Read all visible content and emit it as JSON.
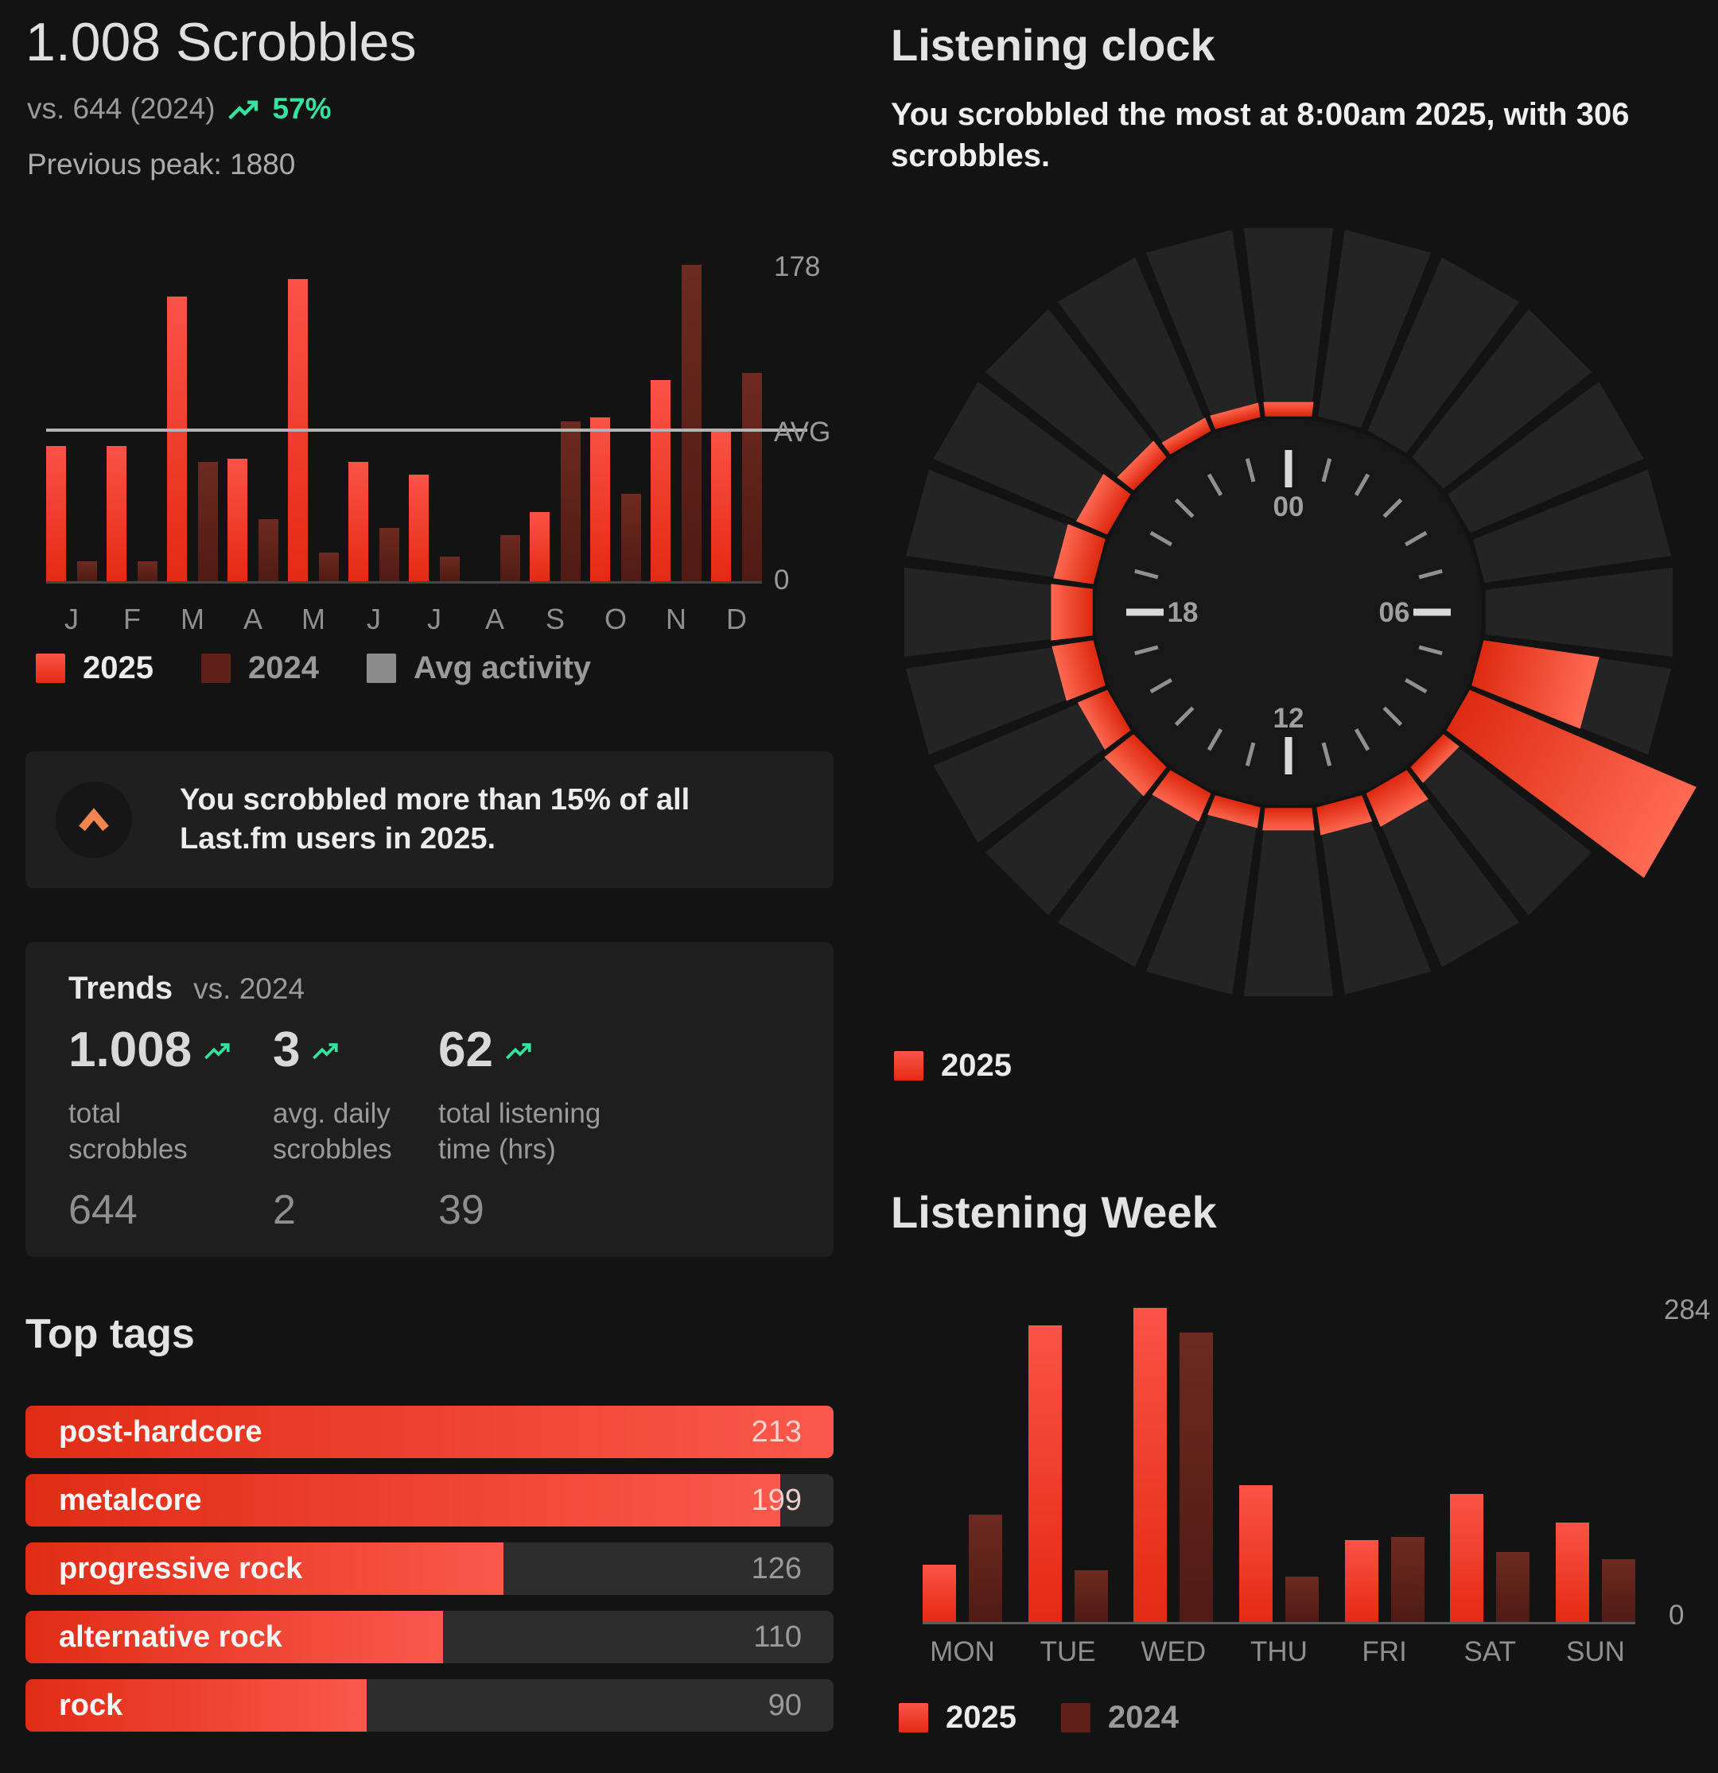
{
  "header": {
    "title": "1.008 Scrobbles",
    "comparison": "vs. 644 (2024)",
    "delta_pct": "57%",
    "previous_peak": "Previous peak: 1880"
  },
  "monthly": {
    "y_axis": {
      "max": "178",
      "avg": "AVG",
      "zero": "0"
    },
    "legend": [
      {
        "label": "2025",
        "swatch": "red"
      },
      {
        "label": "2024",
        "swatch": "dark"
      },
      {
        "label": "Avg activity",
        "swatch": "gray"
      }
    ]
  },
  "callout": {
    "text": "You scrobbled more than 15% of all Last.fm users in 2025."
  },
  "trends": {
    "title": "Trends",
    "subtitle": "vs. 2024",
    "metrics": [
      {
        "value": "1.008",
        "label": "total scrobbles",
        "previous": "644"
      },
      {
        "value": "3",
        "label": "avg. daily scrobbles",
        "previous": "2"
      },
      {
        "value": "62",
        "label": "total listening time (hrs)",
        "previous": "39"
      }
    ]
  },
  "top_tags": {
    "title": "Top tags",
    "max": 213,
    "tags": [
      {
        "name": "post-hardcore",
        "value": 213
      },
      {
        "name": "metalcore",
        "value": 199
      },
      {
        "name": "progressive rock",
        "value": 126
      },
      {
        "name": "alternative rock",
        "value": 110
      },
      {
        "name": "rock",
        "value": 90
      }
    ]
  },
  "clock": {
    "title": "Listening clock",
    "subtitle": "You scrobbled the most at 8:00am 2025, with 306 scrobbles.",
    "face_labels": [
      "00",
      "06",
      "12",
      "18"
    ],
    "legend": [
      {
        "label": "2025",
        "swatch": "red"
      }
    ]
  },
  "week": {
    "title": "Listening Week",
    "y_axis": {
      "max": "284",
      "zero": "0"
    },
    "legend": [
      {
        "label": "2025",
        "swatch": "red"
      },
      {
        "label": "2024",
        "swatch": "dark"
      }
    ]
  },
  "colors": {
    "red_2025": "#f23f2c",
    "dark_red_2024": "#5e2019",
    "avg_gray": "#8c8c8c",
    "green_accent": "#35e3a1",
    "orange_accent": "#f0854f",
    "background": "#131313"
  },
  "chart_data": [
    {
      "id": "monthly_scrobbles",
      "type": "bar",
      "categories": [
        "J",
        "F",
        "M",
        "A",
        "M",
        "J",
        "J",
        "A",
        "S",
        "O",
        "N",
        "D"
      ],
      "series": [
        {
          "name": "2025",
          "values": [
            76,
            76,
            160,
            69,
            170,
            67,
            60,
            0,
            39,
            92,
            113,
            86
          ]
        },
        {
          "name": "2024",
          "values": [
            11,
            11,
            67,
            35,
            16,
            30,
            14,
            26,
            90,
            49,
            178,
            117
          ]
        }
      ],
      "avg_line": 84,
      "ylim": [
        0,
        178
      ],
      "grid": false,
      "legend_position": "bottom"
    },
    {
      "id": "listening_clock",
      "type": "polar_bar",
      "hours": [
        0,
        1,
        2,
        3,
        4,
        5,
        6,
        7,
        8,
        9,
        10,
        11,
        12,
        13,
        14,
        15,
        16,
        17,
        18,
        19,
        20,
        21,
        22,
        23
      ],
      "values": [
        18,
        0,
        0,
        0,
        0,
        0,
        0,
        145,
        306,
        25,
        45,
        35,
        28,
        26,
        38,
        46,
        40,
        52,
        52,
        50,
        42,
        26,
        18,
        18
      ],
      "values_estimated": true,
      "max_value": 306,
      "max_hour_label": "8:00am",
      "series_name": "2025"
    },
    {
      "id": "listening_week",
      "type": "bar",
      "categories": [
        "MON",
        "TUE",
        "WED",
        "THU",
        "FRI",
        "SAT",
        "SUN"
      ],
      "series": [
        {
          "name": "2025",
          "values": [
            52,
            268,
            284,
            124,
            74,
            116,
            90
          ]
        },
        {
          "name": "2024",
          "values": [
            97,
            47,
            262,
            41,
            77,
            63,
            57
          ]
        }
      ],
      "ylim": [
        0,
        284
      ],
      "grid": false,
      "legend_position": "bottom"
    },
    {
      "id": "top_tags",
      "type": "bar",
      "orientation": "horizontal",
      "categories": [
        "post-hardcore",
        "metalcore",
        "progressive rock",
        "alternative rock",
        "rock"
      ],
      "values": [
        213,
        199,
        126,
        110,
        90
      ],
      "xlim": [
        0,
        213
      ]
    }
  ]
}
